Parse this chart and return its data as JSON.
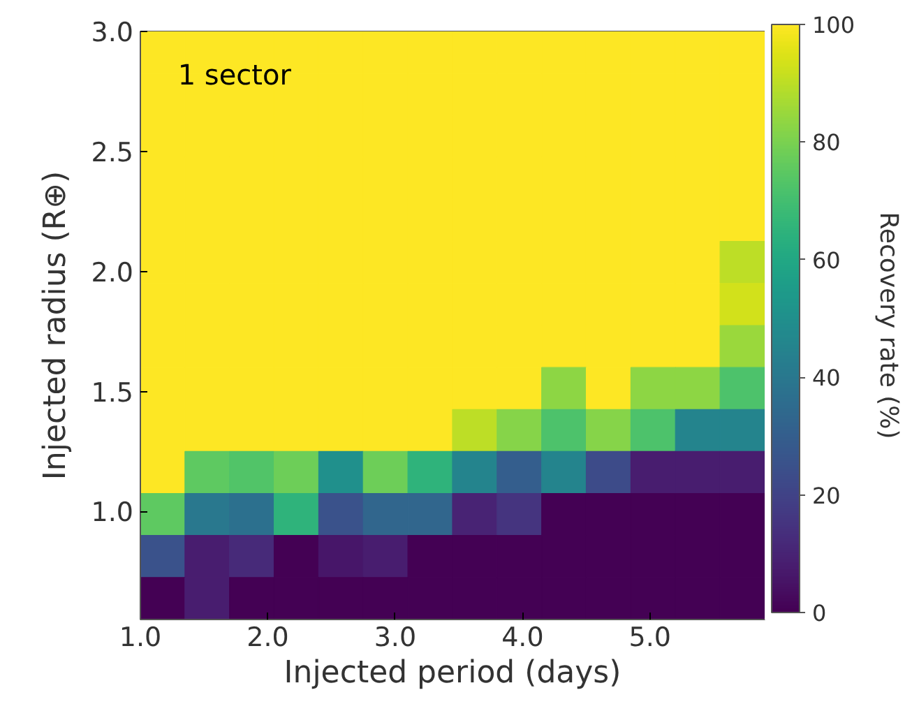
{
  "chart_data": {
    "type": "heatmap",
    "xlabel": "Injected period (days)",
    "ylabel": "Injected radius (R⊕)",
    "clabel": "Recovery rate (%)",
    "annotations": [
      "1 sector"
    ],
    "x": [
      1.175,
      1.525,
      1.875,
      2.225,
      2.575,
      2.925,
      3.275,
      3.625,
      3.975,
      4.325,
      4.675,
      5.025,
      5.375,
      5.725
    ],
    "y": [
      2.9125,
      2.7375,
      2.5625,
      2.3875,
      2.2125,
      2.0375,
      1.8625,
      1.6875,
      1.5125,
      1.3375,
      1.1625,
      0.9875,
      0.8125,
      0.6375
    ],
    "xlim": [
      1.0,
      5.9
    ],
    "ylim": [
      0.55,
      3.0
    ],
    "xticks": [
      {
        "value": 1,
        "label": "1.0"
      },
      {
        "value": 2,
        "label": "2.0"
      },
      {
        "value": 3,
        "label": "3.0"
      },
      {
        "value": 4,
        "label": "4.0"
      },
      {
        "value": 5,
        "label": "5.0"
      }
    ],
    "yticks": [
      {
        "value": 1,
        "label": "1.0"
      },
      1.5,
      {
        "value": 2,
        "label": "2.0"
      },
      2.5,
      {
        "value": 3,
        "label": "3.0"
      }
    ],
    "clim": [
      0,
      100
    ],
    "cticks": [
      0,
      20,
      40,
      60,
      80,
      100
    ],
    "cells": [
      [
        100,
        100,
        100,
        100,
        100,
        100,
        100,
        100,
        100,
        100,
        100,
        100,
        100,
        100
      ],
      [
        100,
        100,
        100,
        100,
        100,
        100,
        100,
        100,
        100,
        100,
        100,
        100,
        100,
        100
      ],
      [
        100,
        100,
        100,
        100,
        100,
        100,
        100,
        100,
        100,
        100,
        100,
        100,
        100,
        100
      ],
      [
        100,
        100,
        100,
        100,
        100,
        100,
        100,
        100,
        100,
        100,
        100,
        100,
        100,
        100
      ],
      [
        100,
        100,
        100,
        100,
        100,
        100,
        100,
        100,
        100,
        100,
        100,
        100,
        100,
        100
      ],
      [
        100,
        100,
        100,
        100,
        100,
        100,
        100,
        100,
        100,
        100,
        100,
        100,
        100,
        90
      ],
      [
        100,
        100,
        100,
        100,
        100,
        100,
        100,
        100,
        100,
        100,
        100,
        100,
        100,
        93
      ],
      [
        100,
        100,
        100,
        100,
        100,
        100,
        100,
        100,
        100,
        100,
        100,
        100,
        100,
        85
      ],
      [
        100,
        100,
        100,
        100,
        100,
        100,
        100,
        100,
        100,
        83,
        100,
        83,
        83,
        72
      ],
      [
        100,
        100,
        100,
        100,
        100,
        100,
        100,
        90,
        82,
        72,
        82,
        72,
        45,
        45
      ],
      [
        100,
        75,
        73,
        78,
        50,
        78,
        65,
        45,
        30,
        45,
        23,
        8,
        8,
        8
      ],
      [
        75,
        40,
        37,
        65,
        25,
        33,
        33,
        10,
        15,
        0,
        0,
        0,
        0,
        0
      ],
      [
        25,
        8,
        12,
        0,
        6,
        8,
        0,
        0,
        0,
        0,
        0,
        0,
        0,
        0
      ],
      [
        0,
        8,
        0,
        0,
        0,
        0,
        0,
        0,
        0,
        0,
        0,
        0,
        0,
        0
      ]
    ]
  }
}
